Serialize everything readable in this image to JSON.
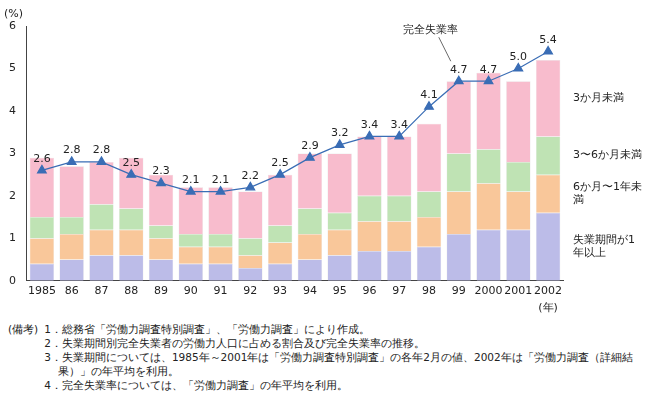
{
  "chart_data": {
    "type": "bar",
    "stacked": true,
    "grid": false,
    "y_label": "(%)",
    "x_label": "(年)",
    "categories": [
      "1985",
      "86",
      "87",
      "88",
      "89",
      "90",
      "91",
      "92",
      "93",
      "94",
      "95",
      "96",
      "97",
      "98",
      "99",
      "2000",
      "2001",
      "2002"
    ],
    "ylim": [
      0,
      6
    ],
    "yticks": [
      0,
      1,
      2,
      3,
      4,
      5,
      6
    ],
    "series": [
      {
        "name": "失業期間が1年以上",
        "color": "#bcbce8",
        "values": [
          0.4,
          0.5,
          0.6,
          0.6,
          0.5,
          0.4,
          0.4,
          0.3,
          0.4,
          0.5,
          0.6,
          0.7,
          0.7,
          0.8,
          1.1,
          1.2,
          1.2,
          1.6
        ]
      },
      {
        "name": "6か月〜1年未満",
        "color": "#f9c79a",
        "values": [
          0.6,
          0.6,
          0.6,
          0.6,
          0.5,
          0.4,
          0.4,
          0.3,
          0.5,
          0.6,
          0.6,
          0.7,
          0.7,
          0.7,
          1.0,
          1.1,
          0.9,
          0.9
        ]
      },
      {
        "name": "3〜6か月未満",
        "color": "#bfe3b4",
        "values": [
          0.5,
          0.4,
          0.6,
          0.5,
          0.3,
          0.3,
          0.3,
          0.4,
          0.4,
          0.6,
          0.4,
          0.6,
          0.6,
          0.6,
          0.9,
          0.8,
          0.7,
          0.9
        ]
      },
      {
        "name": "3か月未満",
        "color": "#f8bccd",
        "values": [
          1.4,
          1.2,
          1.0,
          1.2,
          1.2,
          1.1,
          1.1,
          1.1,
          1.2,
          1.3,
          1.4,
          1.4,
          1.4,
          1.6,
          1.7,
          1.8,
          1.9,
          1.8
        ]
      },
      {
        "name": "完全失業率",
        "type": "line",
        "color": "#3a6db5",
        "marker": "triangle",
        "data_labels": true,
        "values": [
          2.6,
          2.8,
          2.8,
          2.5,
          2.3,
          2.1,
          2.1,
          2.2,
          2.5,
          2.9,
          3.2,
          3.4,
          3.4,
          4.1,
          4.7,
          4.7,
          5.0,
          5.4
        ],
        "value_labels": [
          "2.6",
          "2.8",
          "2.8",
          "2.5",
          "2.3",
          "2.1",
          "2.1",
          "2.2",
          "2.5",
          "2.9",
          "3.2",
          "3.4",
          "3.4",
          "4.1",
          "4.7",
          "4.7",
          "5.0",
          "5.4"
        ]
      }
    ],
    "notes_heading": "(備考)",
    "notes": [
      "1．総務省「労働力調査特別調査」、「労働力調査」により作成。",
      "2．失業期間別完全失業者の労働力人口に占める割合及び完全失業率の推移。",
      "3．失業期間については、1985年～2001年は「労働力調査特別調査」の各年2月の値、2002年は「労働力調査（詳細結果）」の年平均を利用。",
      "4．完全失業率については、「労働力調査」の年平均を利用。"
    ]
  }
}
